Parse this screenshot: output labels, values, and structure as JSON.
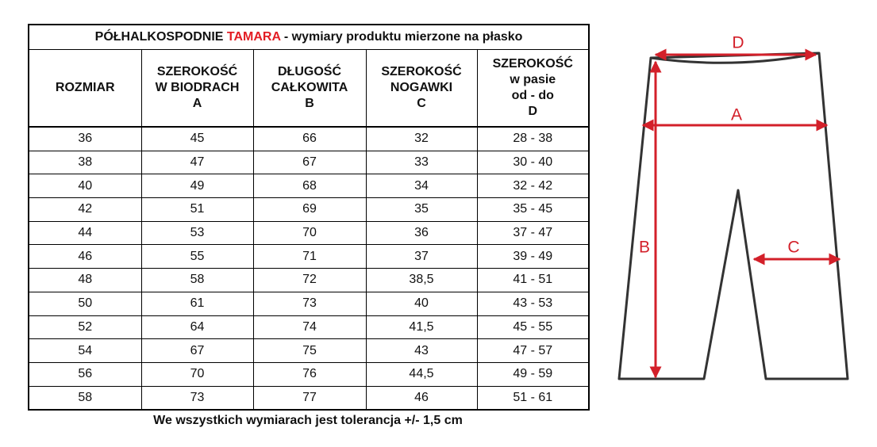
{
  "table": {
    "title": {
      "prefix": "PÓŁHALKOSPODNIE",
      "name": "TAMARA",
      "suffix": "- wymiary produktu mierzone na płasko"
    },
    "headers": [
      "ROZMIAR",
      "SZEROKOŚĆ\nW BIODRACH\nA",
      "DŁUGOŚĆ\nCAŁKOWITA\nB",
      "SZEROKOŚĆ\nNOGAWKI\nC",
      "SZEROKOŚĆ\nw pasie\nod - do\nD"
    ],
    "rows": [
      [
        "36",
        "45",
        "66",
        "32",
        "28 - 38"
      ],
      [
        "38",
        "47",
        "67",
        "33",
        "30 - 40"
      ],
      [
        "40",
        "49",
        "68",
        "34",
        "32 - 42"
      ],
      [
        "42",
        "51",
        "69",
        "35",
        "35 - 45"
      ],
      [
        "44",
        "53",
        "70",
        "36",
        "37 - 47"
      ],
      [
        "46",
        "55",
        "71",
        "37",
        "39 - 49"
      ],
      [
        "48",
        "58",
        "72",
        "38,5",
        "41 - 51"
      ],
      [
        "50",
        "61",
        "73",
        "40",
        "43 - 53"
      ],
      [
        "52",
        "64",
        "74",
        "41,5",
        "45 - 55"
      ],
      [
        "54",
        "67",
        "75",
        "43",
        "47 - 57"
      ],
      [
        "56",
        "70",
        "76",
        "44,5",
        "49 - 59"
      ],
      [
        "58",
        "73",
        "77",
        "46",
        "51 - 61"
      ]
    ],
    "note": "We wszystkich wymiarach jest tolerancja +/- 1,5 cm"
  },
  "diagram": {
    "labels": {
      "D": "D",
      "A": "A",
      "B": "B",
      "C": "C"
    }
  }
}
